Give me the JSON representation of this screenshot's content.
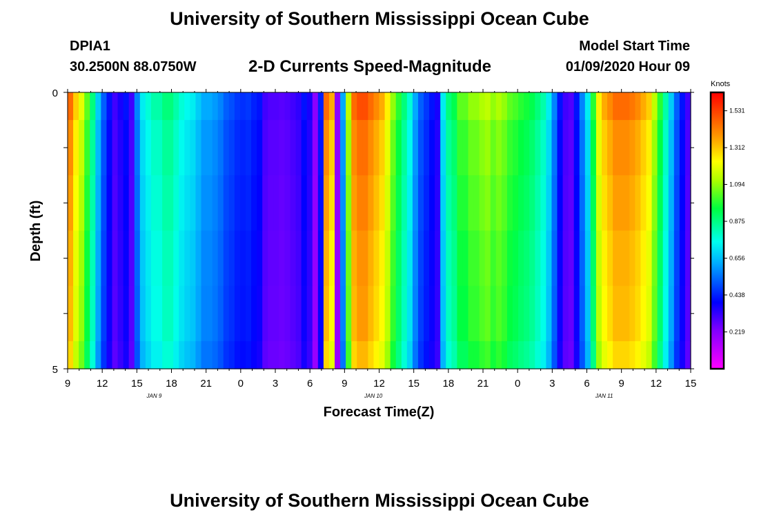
{
  "header": {
    "title": "University of Southern Mississippi Ocean Cube",
    "station": "DPIA1",
    "coordinates": "30.2500N 88.0750W",
    "plot_title": "2-D Currents Speed-Magnitude",
    "model_start_label": "Model Start Time",
    "model_start_value": "01/09/2020 Hour 09"
  },
  "footer": {
    "title": "University of Southern Mississippi Ocean Cube"
  },
  "chart_data": {
    "type": "heatmap",
    "xlabel": "Forecast Time(Z)",
    "ylabel": "Depth (ft)",
    "x_start_hour": 9,
    "hours_total": 54,
    "xtick_labels": [
      "9",
      "12",
      "15",
      "18",
      "21",
      "0",
      "3",
      "6",
      "9",
      "12",
      "15",
      "18",
      "21",
      "0",
      "3",
      "6",
      "9",
      "12",
      "15"
    ],
    "date_labels": [
      {
        "label": "JAN 9",
        "hour": 7.5
      },
      {
        "label": "JAN 10",
        "hour": 26.5
      },
      {
        "label": "JAN 11",
        "hour": 46.5
      }
    ],
    "ytick_labels": [
      "0",
      "5"
    ],
    "ylim": [
      0,
      5
    ],
    "depth_levels": [
      0,
      0.5,
      1.5,
      2.5,
      3.5,
      4.5,
      5
    ],
    "colorbar": {
      "title": "Knots",
      "min": 0,
      "max": 1.64,
      "ticks": [
        "1.531",
        "1.312",
        "1.094",
        "0.875",
        "0.656",
        "0.438",
        "0.219"
      ],
      "tick_values": [
        1.531,
        1.312,
        1.094,
        0.875,
        0.656,
        0.438,
        0.219
      ]
    },
    "speeds_knots": [
      1.4,
      1.25,
      1.15,
      1.0,
      0.85,
      0.65,
      0.5,
      0.4,
      0.3,
      0.35,
      0.4,
      0.3,
      0.55,
      0.7,
      0.75,
      0.8,
      0.8,
      0.85,
      0.85,
      0.8,
      0.75,
      0.72,
      0.7,
      0.65,
      0.6,
      0.6,
      0.58,
      0.55,
      0.5,
      0.48,
      0.45,
      0.44,
      0.45,
      0.42,
      0.4,
      0.3,
      0.28,
      0.28,
      0.27,
      0.28,
      0.3,
      0.32,
      0.4,
      0.35,
      0.2,
      0.42,
      1.4,
      1.3,
      0.2,
      0.6,
      1.1,
      1.4,
      1.45,
      1.45,
      1.4,
      1.35,
      1.3,
      1.2,
      1.05,
      0.95,
      0.85,
      0.75,
      0.6,
      0.5,
      0.45,
      0.4,
      0.35,
      0.7,
      0.85,
      0.9,
      1.0,
      1.0,
      1.05,
      1.05,
      1.08,
      1.1,
      1.05,
      1.08,
      1.05,
      1.0,
      0.98,
      0.95,
      0.93,
      0.9,
      0.85,
      0.8,
      0.7,
      0.55,
      0.4,
      0.3,
      0.28,
      0.4,
      0.55,
      0.7,
      0.95,
      1.2,
      1.3,
      1.35,
      1.4,
      1.4,
      1.4,
      1.38,
      1.35,
      1.3,
      1.25,
      1.1,
      0.95,
      0.8,
      0.65,
      0.5,
      0.4,
      0.3
    ],
    "depth_factors": [
      1.04,
      1.0,
      0.98,
      0.96,
      0.95,
      0.92
    ]
  }
}
